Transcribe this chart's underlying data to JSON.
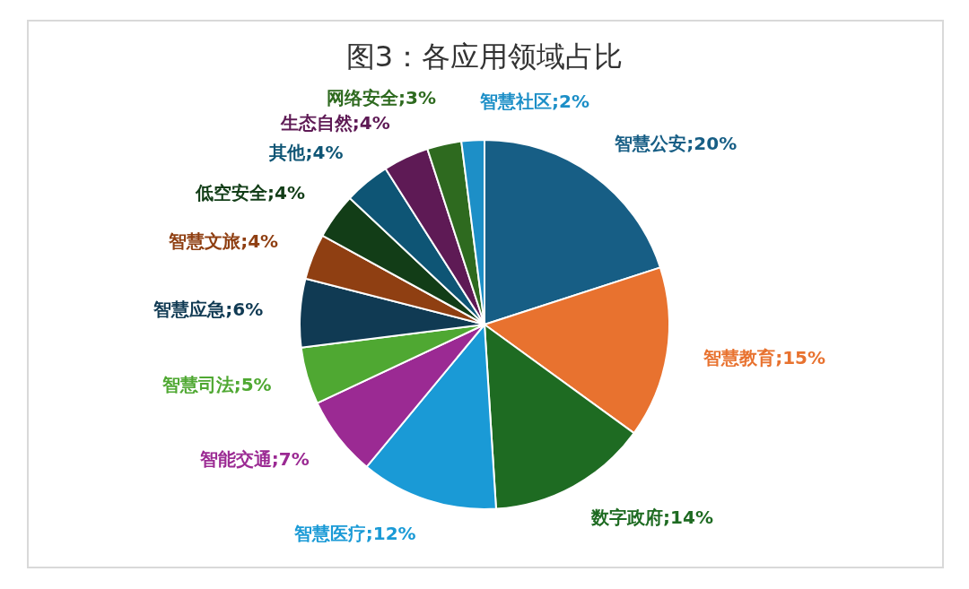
{
  "chart_data": {
    "type": "pie",
    "title": "图3：各应用领域占比",
    "categories": [
      "智慧公安",
      "智慧教育",
      "数字政府",
      "智慧医疗",
      "智能交通",
      "智慧司法",
      "智慧应急",
      "智慧文旅",
      "低空安全",
      "其他",
      "生态自然",
      "网络安全",
      "智慧社区"
    ],
    "values": [
      20,
      15,
      14,
      12,
      7,
      5,
      6,
      4,
      4,
      4,
      4,
      3,
      2
    ],
    "value_labels": [
      "20%",
      "15%",
      "14%",
      "12%",
      "7%",
      "5%",
      "6%",
      "4%",
      "4%",
      "4%",
      "4%",
      "3%",
      "2%"
    ],
    "colors": [
      "#175e85",
      "#e8722f",
      "#1e6b22",
      "#1a9ad6",
      "#9b2a93",
      "#4fa832",
      "#103a53",
      "#8f3f12",
      "#123d17",
      "#0e5575",
      "#5e1a55",
      "#2e6a1f",
      "#1d8fc7"
    ],
    "legend": false
  }
}
